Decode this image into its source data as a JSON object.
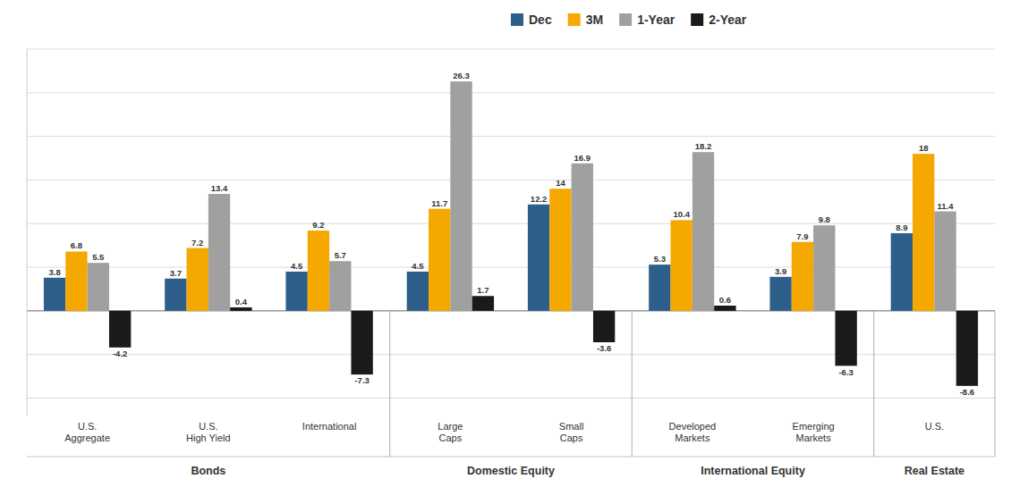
{
  "chart_data": {
    "type": "bar",
    "categories": [
      "U.S.\nAggregate",
      "U.S.\nHigh Yield",
      "International",
      "Large\nCaps",
      "Small\nCaps",
      "Developed\nMarkets",
      "Emerging\nMarkets",
      "U.S."
    ],
    "series": [
      {
        "name": "Dec",
        "color": "#2e5f8a",
        "values": [
          3.8,
          3.7,
          4.5,
          4.5,
          12.2,
          5.3,
          3.9,
          8.9
        ]
      },
      {
        "name": "3M",
        "color": "#f5a800",
        "values": [
          6.8,
          7.2,
          9.2,
          11.7,
          14.0,
          10.4,
          7.9,
          18.0
        ]
      },
      {
        "name": "1-Year",
        "color": "#a0a0a0",
        "values": [
          5.5,
          13.4,
          5.7,
          26.3,
          16.9,
          18.2,
          9.8,
          11.4
        ]
      },
      {
        "name": "2-Year",
        "color": "#1a1a1a",
        "values": [
          -4.2,
          0.4,
          -7.3,
          1.7,
          -3.6,
          0.6,
          -6.3,
          -8.6
        ]
      }
    ],
    "groups": [
      {
        "name": "Bonds",
        "span": [
          0,
          2
        ]
      },
      {
        "name": "Domestic Equity",
        "span": [
          3,
          4
        ]
      },
      {
        "name": "International Equity",
        "span": [
          5,
          6
        ]
      },
      {
        "name": "Real Estate",
        "span": [
          7,
          7
        ]
      }
    ],
    "ylim": [
      -12,
      30
    ],
    "yticks": [
      -10,
      -5,
      0,
      5,
      10,
      15,
      20,
      25,
      30
    ],
    "grid": true,
    "legend": "top",
    "data_labels": true,
    "tick_labels": "x"
  }
}
